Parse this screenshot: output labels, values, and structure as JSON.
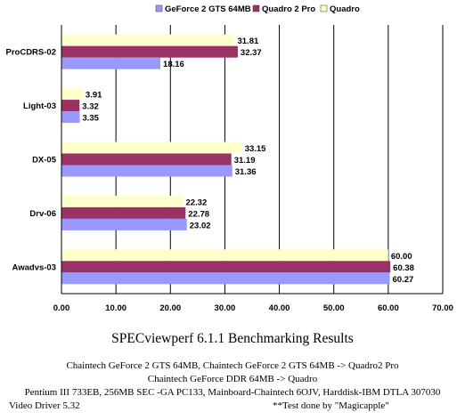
{
  "chart_data": {
    "type": "bar",
    "orientation": "horizontal",
    "categories": [
      "ProCDRS-02",
      "Light-03",
      "DX-05",
      "Drv-06",
      "Awadvs-03"
    ],
    "series": [
      {
        "name": "GeForce 2 GTS 64MB",
        "values": [
          18.16,
          3.35,
          31.36,
          23.02,
          60.27
        ],
        "color": "#9999ff"
      },
      {
        "name": "Quadro 2 Pro",
        "values": [
          32.37,
          3.32,
          31.19,
          22.78,
          60.38
        ],
        "color": "#993366"
      },
      {
        "name": "Quadro",
        "values": [
          31.81,
          3.91,
          33.15,
          22.32,
          60.0
        ],
        "color": "#ffffcc"
      }
    ],
    "xlim": [
      0,
      70
    ],
    "x_ticks": [
      "0.00",
      "10.00",
      "20.00",
      "30.00",
      "40.00",
      "50.00",
      "60.00",
      "70.00"
    ],
    "grid": "vertical",
    "legend_position": "top",
    "data_labels": true
  },
  "caption": {
    "title": "SPECviewperf 6.1.1 Benchmarking Results",
    "line1": "Chaintech GeForce 2 GTS 64MB, Chaintech GeForce 2 GTS 64MB -> Quadro2 Pro",
    "line2": "Chaintech GeForce DDR 64MB  -> Quadro",
    "line3": "Pentium III 733EB, 256MB SEC -GA PC133, Mainboard-Chaintech 6OJV, Harddisk-IBM DTLA 307030",
    "line4": "Video Driver 5.32",
    "line5": "**Test done by \"Magicapple\""
  }
}
